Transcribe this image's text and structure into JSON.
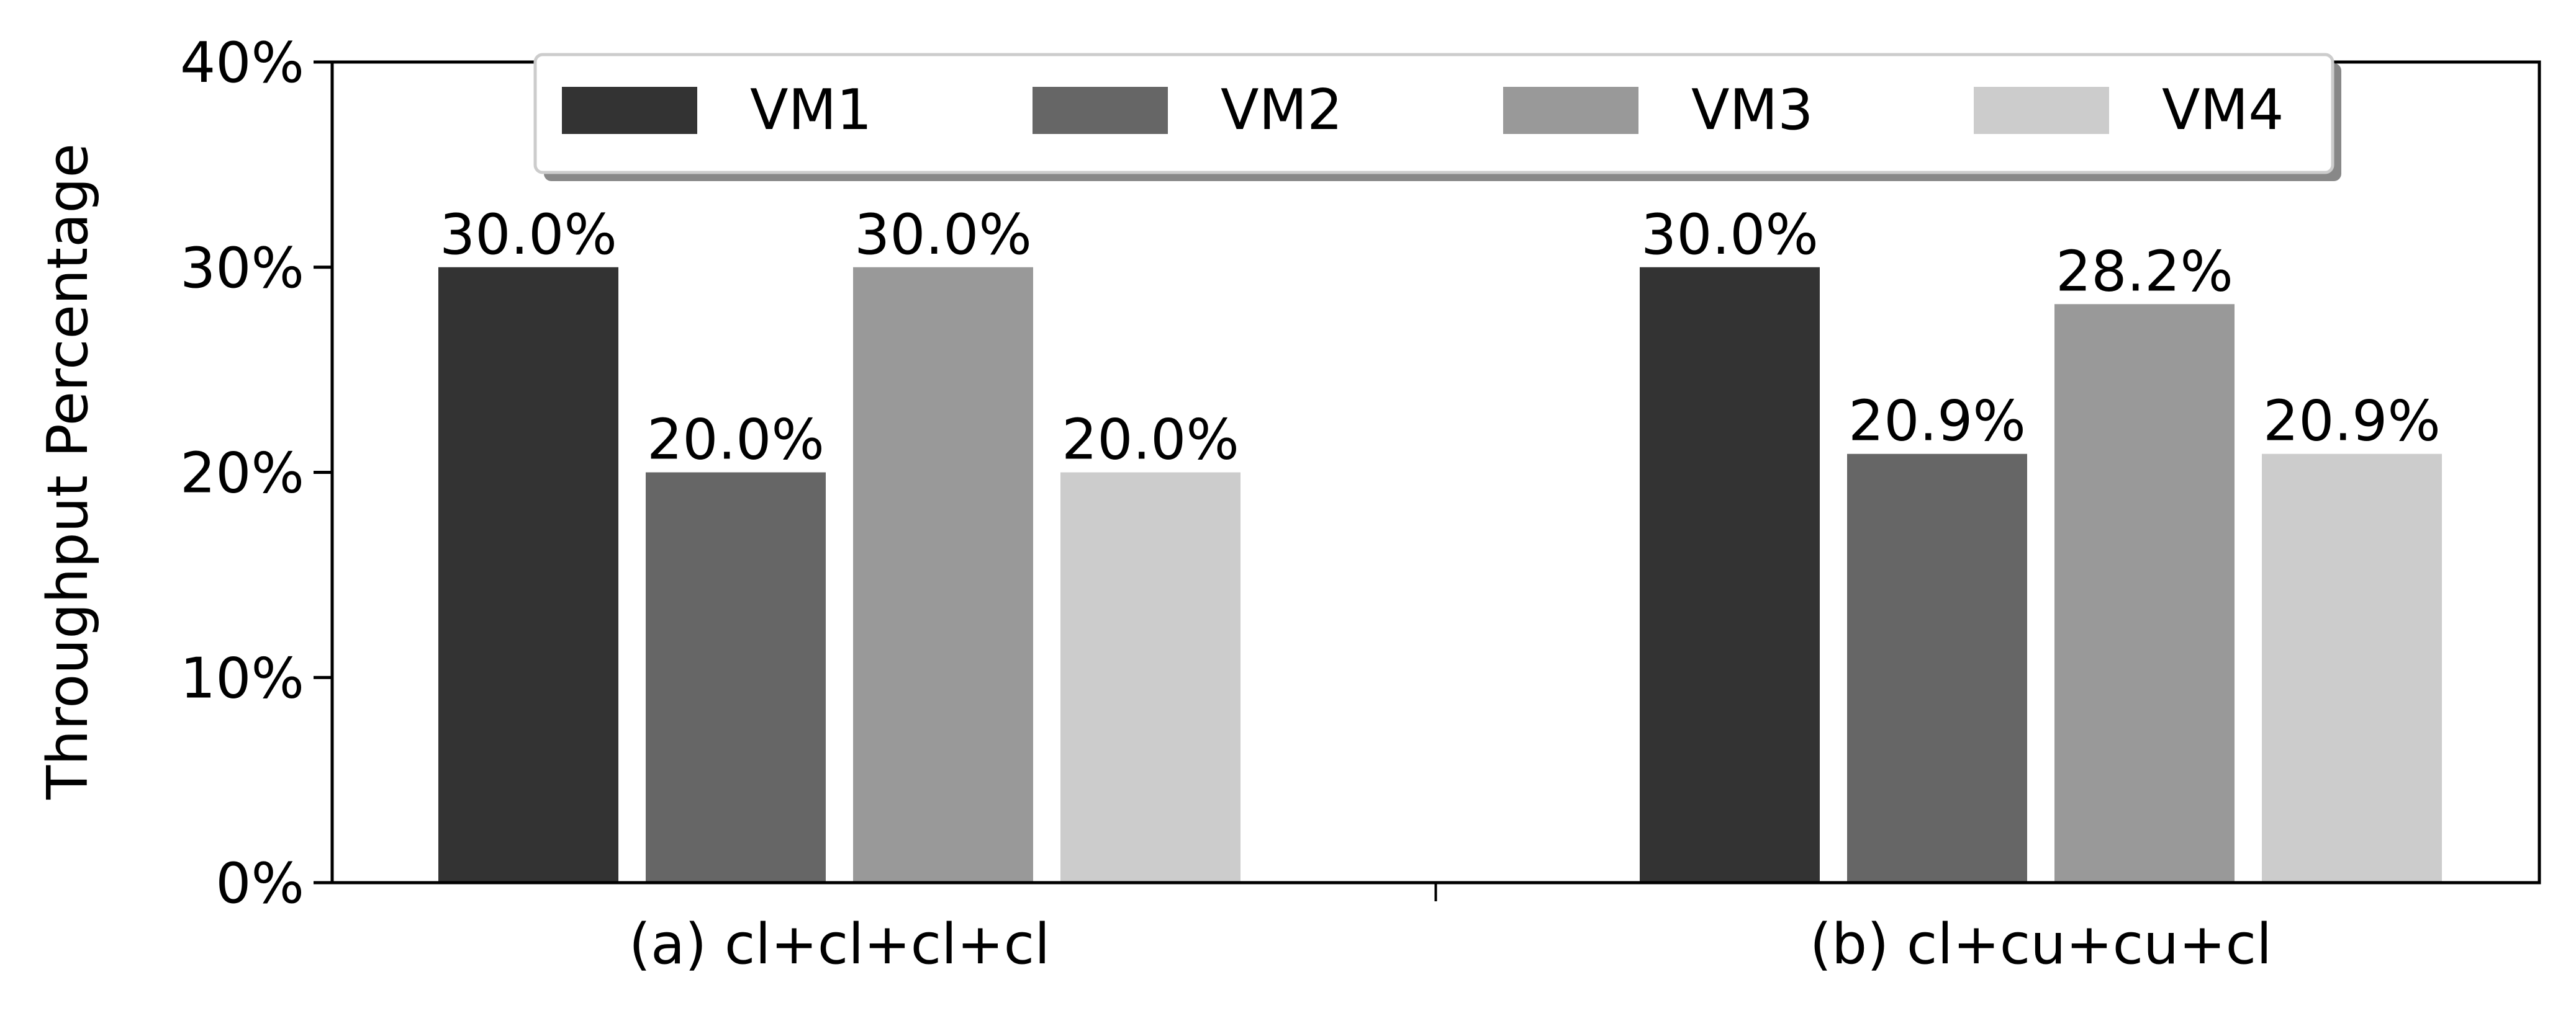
{
  "chart_data": {
    "type": "bar",
    "title": "",
    "xlabel": "",
    "ylabel": "Throughput Percentage",
    "ylim": [
      0,
      40
    ],
    "yticks": [
      0,
      10,
      20,
      30,
      40
    ],
    "ytick_labels": [
      "0%",
      "10%",
      "20%",
      "30%",
      "40%"
    ],
    "categories": [
      "(a) cl+cl+cl+cl",
      "(b) cl+cu+cu+cl"
    ],
    "series": [
      {
        "name": "VM1",
        "color": "#333333",
        "values": [
          30.0,
          30.0
        ],
        "labels": [
          "30.0%",
          "30.0%"
        ]
      },
      {
        "name": "VM2",
        "color": "#666666",
        "values": [
          20.0,
          20.9
        ],
        "labels": [
          "20.0%",
          "20.9%"
        ]
      },
      {
        "name": "VM3",
        "color": "#999999",
        "values": [
          30.0,
          28.2
        ],
        "labels": [
          "30.0%",
          "28.2%"
        ]
      },
      {
        "name": "VM4",
        "color": "#cccccc",
        "values": [
          20.0,
          20.9
        ],
        "labels": [
          "20.0%",
          "20.9%"
        ]
      }
    ],
    "legend": {
      "position": "top-center",
      "columns": 4
    },
    "grid": false
  }
}
